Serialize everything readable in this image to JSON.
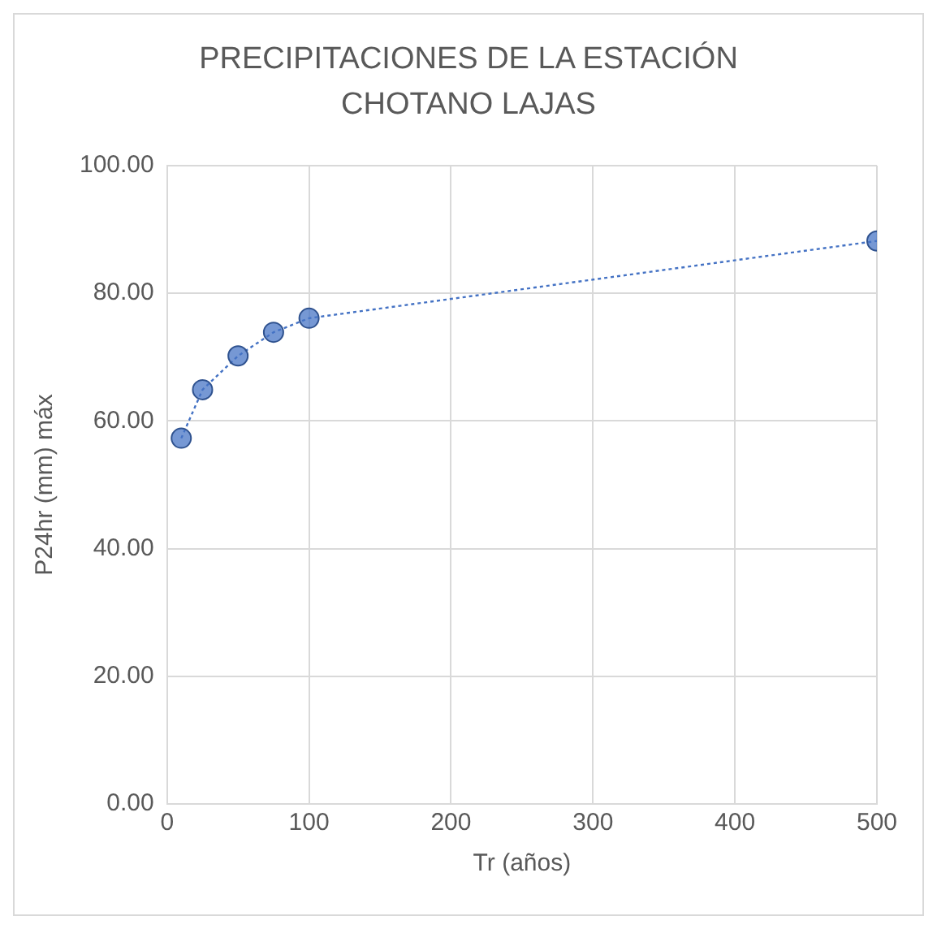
{
  "chart_data": {
    "type": "line",
    "title": "PRECIPITACIONES DE LA ESTACIÓN CHOTANO LAJAS",
    "xlabel": "Tr (años)",
    "ylabel": "P24hr (mm) máx",
    "x": [
      10,
      25,
      50,
      75,
      100,
      500
    ],
    "series": [
      {
        "color": "#4472c4",
        "values": [
          57.3,
          64.9,
          70.2,
          73.9,
          76.1,
          88.2
        ]
      }
    ],
    "xlim": [
      0,
      500
    ],
    "xticks": [
      0,
      100,
      200,
      300,
      400,
      500
    ],
    "ylim": [
      0,
      100
    ],
    "yticks": [
      {
        "value": 0,
        "label": "0.00"
      },
      {
        "value": 20,
        "label": "20.00"
      },
      {
        "value": 40,
        "label": "40.00"
      },
      {
        "value": 60,
        "label": "60.00"
      },
      {
        "value": 80,
        "label": "80.00"
      },
      {
        "value": 100,
        "label": "100.00"
      }
    ],
    "grid": true,
    "legend": false,
    "marker": "circle",
    "line_style": "dotted"
  }
}
